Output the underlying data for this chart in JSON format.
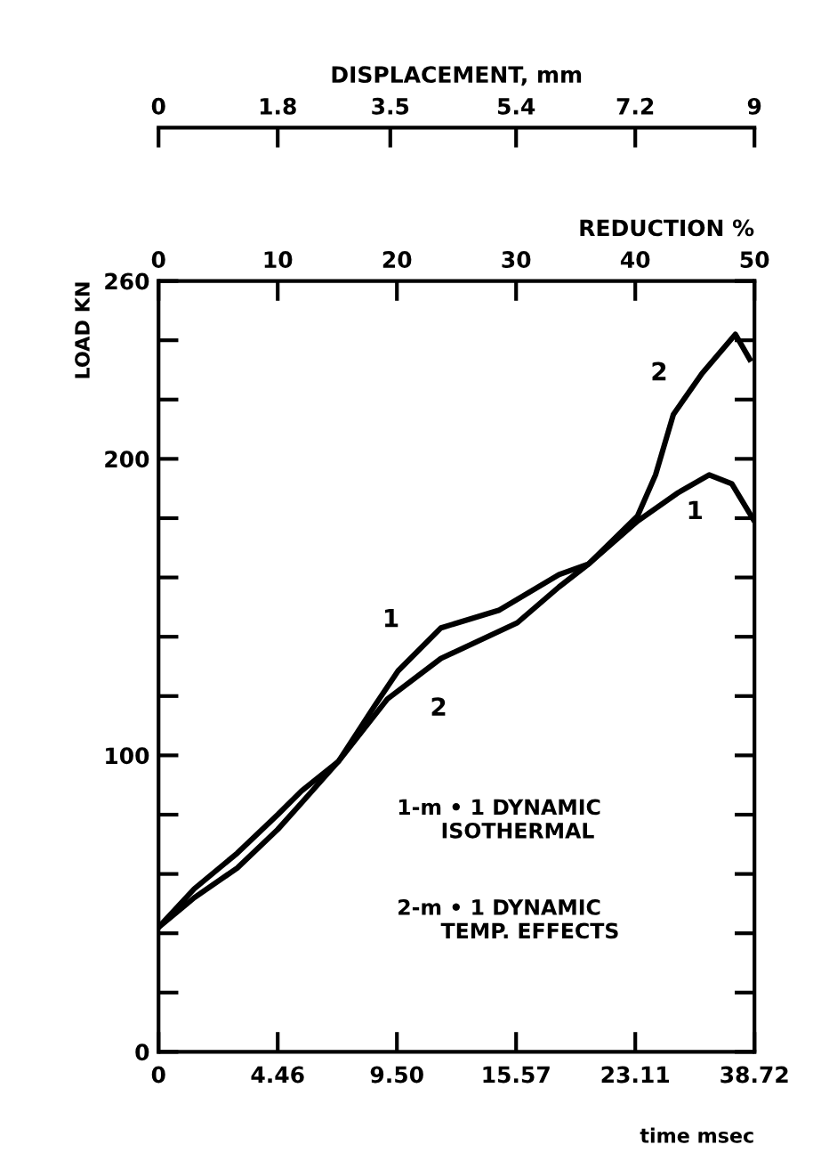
{
  "chart_data": [
    {
      "type": "line",
      "ylabel": "LOAD KN",
      "xlabel": "REDUCTION %",
      "x2label": "DISPLACEMENT, mm",
      "xlim": [
        0,
        50
      ],
      "xticks": [
        0,
        10,
        20,
        30,
        40,
        50
      ],
      "x2lim": [
        0,
        9
      ],
      "x2ticks": [
        0,
        1.8,
        3.5,
        5.4,
        7.2,
        9
      ],
      "ylim": [
        0,
        260
      ],
      "yticks": [
        0,
        {
          "value": 20,
          "label": null
        },
        {
          "value": 40,
          "label": null
        },
        {
          "value": 60,
          "label": null
        },
        {
          "value": 80,
          "label": null
        },
        100,
        {
          "value": 120,
          "label": null
        },
        {
          "value": 140,
          "label": null
        },
        {
          "value": 160,
          "label": null
        },
        {
          "value": 180,
          "label": null
        },
        200,
        {
          "value": 220,
          "label": null
        },
        {
          "value": 240,
          "label": null
        },
        260
      ],
      "grid": false,
      "legend": false,
      "marker": "none",
      "line_style": "solid",
      "series": [
        {
          "color": "#000000",
          "x": [
            0,
            3,
            6.6,
            10,
            12,
            15.1,
            18.1,
            20.1,
            23.7,
            28.6,
            33.6,
            36.1,
            40.2,
            43.6,
            46.2,
            48.1,
            49.9
          ],
          "values": [
            42,
            55,
            67,
            80,
            88,
            98,
            116.5,
            128.5,
            143,
            149,
            161,
            164.6,
            179,
            188.6,
            194.6,
            191.6,
            179.6
          ]
        },
        {
          "color": "#000000",
          "x": [
            0,
            3,
            6.6,
            10,
            12,
            15.1,
            19.2,
            23.7,
            30.1,
            33.6,
            36.1,
            40.2,
            41.7,
            43.2,
            45.6,
            48.4,
            49.6
          ],
          "values": [
            42,
            52,
            62,
            75,
            84,
            98,
            119,
            132.7,
            144.7,
            156.8,
            164.6,
            180.8,
            194.6,
            215,
            228.8,
            242,
            233.6
          ]
        }
      ],
      "annotations": [
        "1",
        "2",
        "2",
        "1",
        "1-m • 1 DYNAMIC\n      ISOTHERMAL",
        "2-m • 1 DYNAMIC\n      TEMP. EFFECTS"
      ]
    },
    {
      "type": "other",
      "annotations": [
        "0",
        "4.46",
        "9.50",
        "15.57",
        "23.11",
        "38.72",
        "time msec"
      ]
    }
  ]
}
